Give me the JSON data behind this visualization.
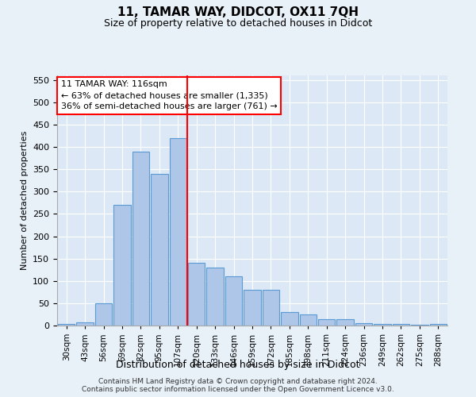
{
  "title_line1": "11, TAMAR WAY, DIDCOT, OX11 7QH",
  "title_line2": "Size of property relative to detached houses in Didcot",
  "xlabel": "Distribution of detached houses by size in Didcot",
  "ylabel": "Number of detached properties",
  "footnote": "Contains HM Land Registry data © Crown copyright and database right 2024.\nContains public sector information licensed under the Open Government Licence v3.0.",
  "bar_labels": [
    "30sqm",
    "43sqm",
    "56sqm",
    "69sqm",
    "82sqm",
    "95sqm",
    "107sqm",
    "120sqm",
    "133sqm",
    "146sqm",
    "159sqm",
    "172sqm",
    "185sqm",
    "198sqm",
    "211sqm",
    "224sqm",
    "236sqm",
    "249sqm",
    "262sqm",
    "275sqm",
    "288sqm"
  ],
  "bar_values": [
    3,
    8,
    50,
    270,
    390,
    340,
    420,
    140,
    130,
    110,
    80,
    80,
    30,
    25,
    15,
    15,
    5,
    3,
    3,
    2,
    3
  ],
  "bar_color": "#aec6e8",
  "bar_edge_color": "#5b9bd5",
  "vline_color": "red",
  "annotation_text": "11 TAMAR WAY: 116sqm\n← 63% of detached houses are smaller (1,335)\n36% of semi-detached houses are larger (761) →",
  "annotation_box_color": "white",
  "annotation_box_edge": "red",
  "ylim": [
    0,
    560
  ],
  "yticks": [
    0,
    50,
    100,
    150,
    200,
    250,
    300,
    350,
    400,
    450,
    500,
    550
  ],
  "background_color": "#e8f0f8",
  "plot_bg_color": "#dce8f5",
  "title1_fontsize": 11,
  "title2_fontsize": 9,
  "ylabel_fontsize": 8,
  "xlabel_fontsize": 9,
  "tick_fontsize": 8,
  "xtick_fontsize": 7.5,
  "footnote_fontsize": 6.5
}
